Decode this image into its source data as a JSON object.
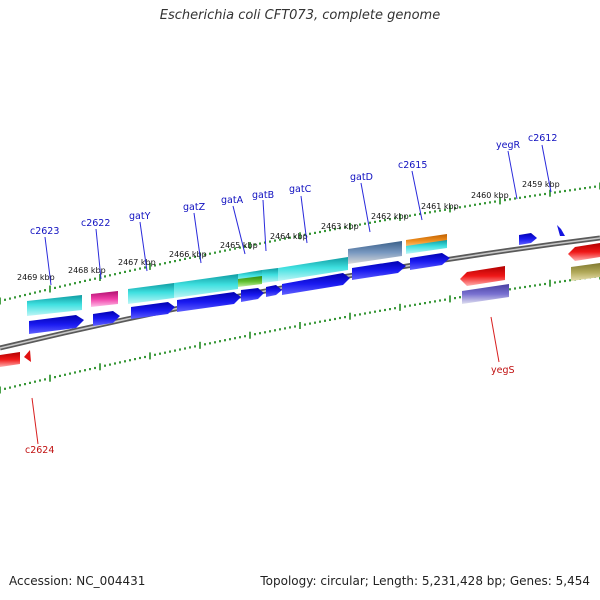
{
  "header": {
    "title": "Escherichia coli CFT073, complete genome"
  },
  "footer": {
    "accession": "Accession: NC_004431",
    "summary": "Topology: circular; Length: 5,231,428 bp; Genes: 5,454"
  },
  "colors": {
    "backbone": "#7b7b7b",
    "tick": "#1f8a1f",
    "forward_label": "#1010c0",
    "reverse_label": "#c01010",
    "cds": "#1515e0",
    "teal": "#20c8c8",
    "magenta": "#e0309a",
    "green": "#55b030",
    "steel": "#5a7fa8",
    "orange": "#f08a10",
    "red": "#e01010",
    "olive": "#a8a050",
    "purple": "#6860c0"
  },
  "scale": {
    "labels": [
      "2469 kbp",
      "2468 kbp",
      "2467 kbp",
      "2466 kbp",
      "2465 kbp",
      "2464 kbp",
      "2463 kbp",
      "2462 kbp",
      "2461 kbp",
      "2460 kbp",
      "2459 kbp"
    ]
  },
  "forward_genes": [
    "c2623",
    "c2622",
    "gatY",
    "gatZ",
    "gatA",
    "gatB",
    "gatC",
    "gatD",
    "c2615",
    "yegR",
    "c2612"
  ],
  "reverse_genes": [
    "c2624",
    "yegS"
  ]
}
